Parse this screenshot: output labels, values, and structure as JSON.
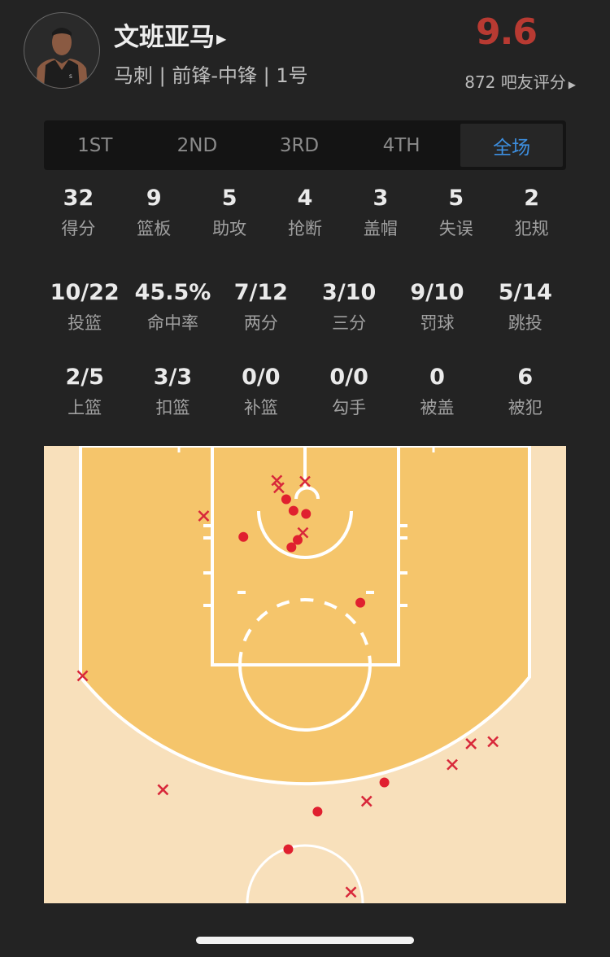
{
  "player": {
    "name": "文班亚马",
    "info": "马刺 | 前锋-中锋 | 1号",
    "rating": "9.6",
    "raters": "872 吧友评分",
    "avatar_icon": "player-headshot"
  },
  "colors": {
    "rating": "#b83a32",
    "active_tab": "#3d8fe0",
    "made": "#e0202f",
    "missed": "#d8283a",
    "paint": "#f5c56b",
    "court_outer": "#f8e0bb"
  },
  "tabs": [
    {
      "label": "1ST",
      "active": false
    },
    {
      "label": "2ND",
      "active": false
    },
    {
      "label": "3RD",
      "active": false
    },
    {
      "label": "4TH",
      "active": false
    },
    {
      "label": "全场",
      "active": true
    }
  ],
  "stats_row1": [
    {
      "value": "32",
      "label": "得分"
    },
    {
      "value": "9",
      "label": "篮板"
    },
    {
      "value": "5",
      "label": "助攻"
    },
    {
      "value": "4",
      "label": "抢断"
    },
    {
      "value": "3",
      "label": "盖帽"
    },
    {
      "value": "5",
      "label": "失误"
    },
    {
      "value": "2",
      "label": "犯规"
    }
  ],
  "stats_row2": [
    {
      "value": "10/22",
      "label": "投篮"
    },
    {
      "value": "45.5%",
      "label": "命中率"
    },
    {
      "value": "7/12",
      "label": "两分"
    },
    {
      "value": "3/10",
      "label": "三分"
    },
    {
      "value": "9/10",
      "label": "罚球"
    },
    {
      "value": "5/14",
      "label": "跳投"
    }
  ],
  "stats_row3": [
    {
      "value": "2/5",
      "label": "上篮"
    },
    {
      "value": "3/3",
      "label": "扣篮"
    },
    {
      "value": "0/0",
      "label": "补篮"
    },
    {
      "value": "0/0",
      "label": "勾手"
    },
    {
      "value": "0",
      "label": "被盖"
    },
    {
      "value": "6",
      "label": "被犯"
    }
  ],
  "shot_chart": {
    "units": "ft (x from center line of court, y from baseline)",
    "made": [
      [
        -1.8,
        5.1
      ],
      [
        -1.1,
        6.2
      ],
      [
        0.1,
        6.5
      ],
      [
        -5.9,
        8.7
      ],
      [
        -0.7,
        9.0
      ],
      [
        -1.3,
        9.7
      ],
      [
        5.3,
        15.0
      ],
      [
        7.6,
        32.2
      ],
      [
        1.2,
        35.0
      ],
      [
        -1.6,
        38.6
      ]
    ],
    "missed": [
      [
        -2.7,
        3.3
      ],
      [
        -2.5,
        4.0
      ],
      [
        0,
        3.4
      ],
      [
        -9.7,
        6.7
      ],
      [
        -0.2,
        8.3
      ],
      [
        -21.3,
        22.0
      ],
      [
        15.9,
        28.5
      ],
      [
        18.0,
        28.3
      ],
      [
        14.1,
        30.5
      ],
      [
        -13.6,
        32.9
      ],
      [
        5.9,
        34.0
      ],
      [
        4.4,
        42.7
      ]
    ]
  }
}
